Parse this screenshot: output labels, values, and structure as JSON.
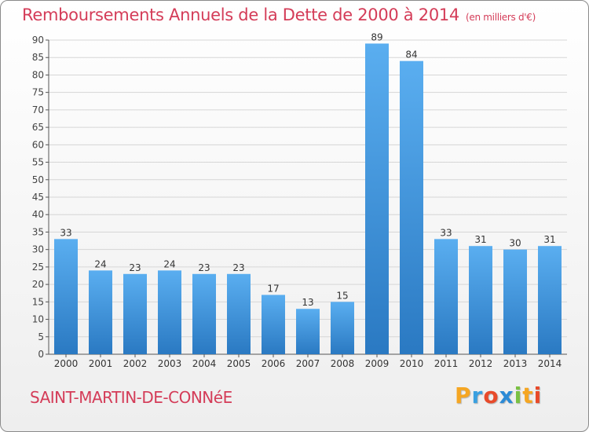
{
  "chart_data": {
    "type": "bar",
    "title": "Remboursements Annuels de la Dette de 2000 à 2014",
    "unit_label": "(en milliers d'€)",
    "categories": [
      "2000",
      "2001",
      "2002",
      "2003",
      "2004",
      "2005",
      "2006",
      "2007",
      "2008",
      "2009",
      "2010",
      "2011",
      "2012",
      "2013",
      "2014"
    ],
    "values": [
      33,
      24,
      23,
      24,
      23,
      23,
      17,
      13,
      15,
      89,
      84,
      33,
      31,
      30,
      31
    ],
    "ylim": [
      0,
      90
    ],
    "yticks": [
      0,
      5,
      10,
      15,
      20,
      25,
      30,
      35,
      40,
      45,
      50,
      55,
      60,
      65,
      70,
      75,
      80,
      85,
      90
    ],
    "grid": true,
    "bar_color": "#3a8fd4"
  },
  "footer": {
    "commune": "SAINT-MARTIN-DE-CONNéE",
    "logo_letters": [
      "P",
      "r",
      "o",
      "x",
      "i",
      "t",
      "i"
    ],
    "logo_colors": [
      "#f5a623",
      "#3aa0e0",
      "#e84a2a",
      "#2b8ad6",
      "#7ac142",
      "#f5a623",
      "#e84a2a"
    ]
  }
}
